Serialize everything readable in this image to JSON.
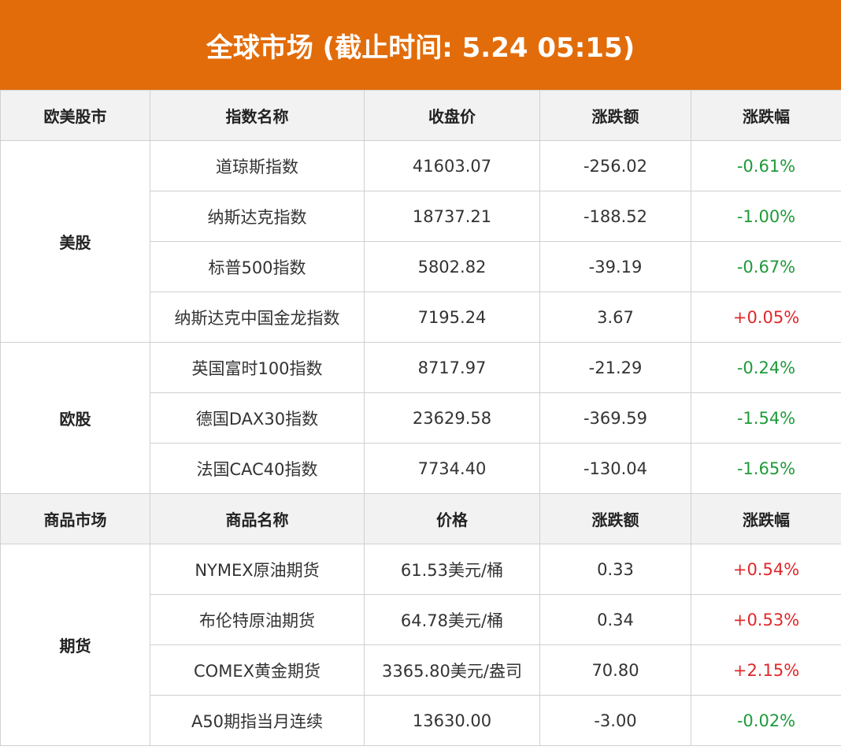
{
  "title": "全球市场 (截止时间: 5.24 05:15)",
  "colors": {
    "header_bg": "#e26c0a",
    "up": "#e0282a",
    "down": "#1f9a3a"
  },
  "stock_header": [
    "欧美股市",
    "指数名称",
    "收盘价",
    "涨跌额",
    "涨跌幅"
  ],
  "stock_groups": [
    {
      "label": "美股",
      "rows": [
        {
          "name": "道琼斯指数",
          "price": "41603.07",
          "change": "-256.02",
          "pct": "-0.61%",
          "dir": "down"
        },
        {
          "name": "纳斯达克指数",
          "price": "18737.21",
          "change": "-188.52",
          "pct": "-1.00%",
          "dir": "down"
        },
        {
          "name": "标普500指数",
          "price": "5802.82",
          "change": "-39.19",
          "pct": "-0.67%",
          "dir": "down"
        },
        {
          "name": "纳斯达克中国金龙指数",
          "price": "7195.24",
          "change": "3.67",
          "pct": "+0.05%",
          "dir": "up"
        }
      ]
    },
    {
      "label": "欧股",
      "rows": [
        {
          "name": "英国富时100指数",
          "price": "8717.97",
          "change": "-21.29",
          "pct": "-0.24%",
          "dir": "down"
        },
        {
          "name": "德国DAX30指数",
          "price": "23629.58",
          "change": "-369.59",
          "pct": "-1.54%",
          "dir": "down"
        },
        {
          "name": "法国CAC40指数",
          "price": "7734.40",
          "change": "-130.04",
          "pct": "-1.65%",
          "dir": "down"
        }
      ]
    }
  ],
  "commodity_header": [
    "商品市场",
    "商品名称",
    "价格",
    "涨跌额",
    "涨跌幅"
  ],
  "commodity_groups": [
    {
      "label": "期货",
      "rows": [
        {
          "name": "NYMEX原油期货",
          "price": "61.53美元/桶",
          "change": "0.33",
          "pct": "+0.54%",
          "dir": "up"
        },
        {
          "name": "布伦特原油期货",
          "price": "64.78美元/桶",
          "change": "0.34",
          "pct": "+0.53%",
          "dir": "up"
        },
        {
          "name": "COMEX黄金期货",
          "price": "3365.80美元/盎司",
          "change": "70.80",
          "pct": "+2.15%",
          "dir": "up"
        },
        {
          "name": "A50期指当月连续",
          "price": "13630.00",
          "change": "-3.00",
          "pct": "-0.02%",
          "dir": "down"
        }
      ]
    }
  ]
}
